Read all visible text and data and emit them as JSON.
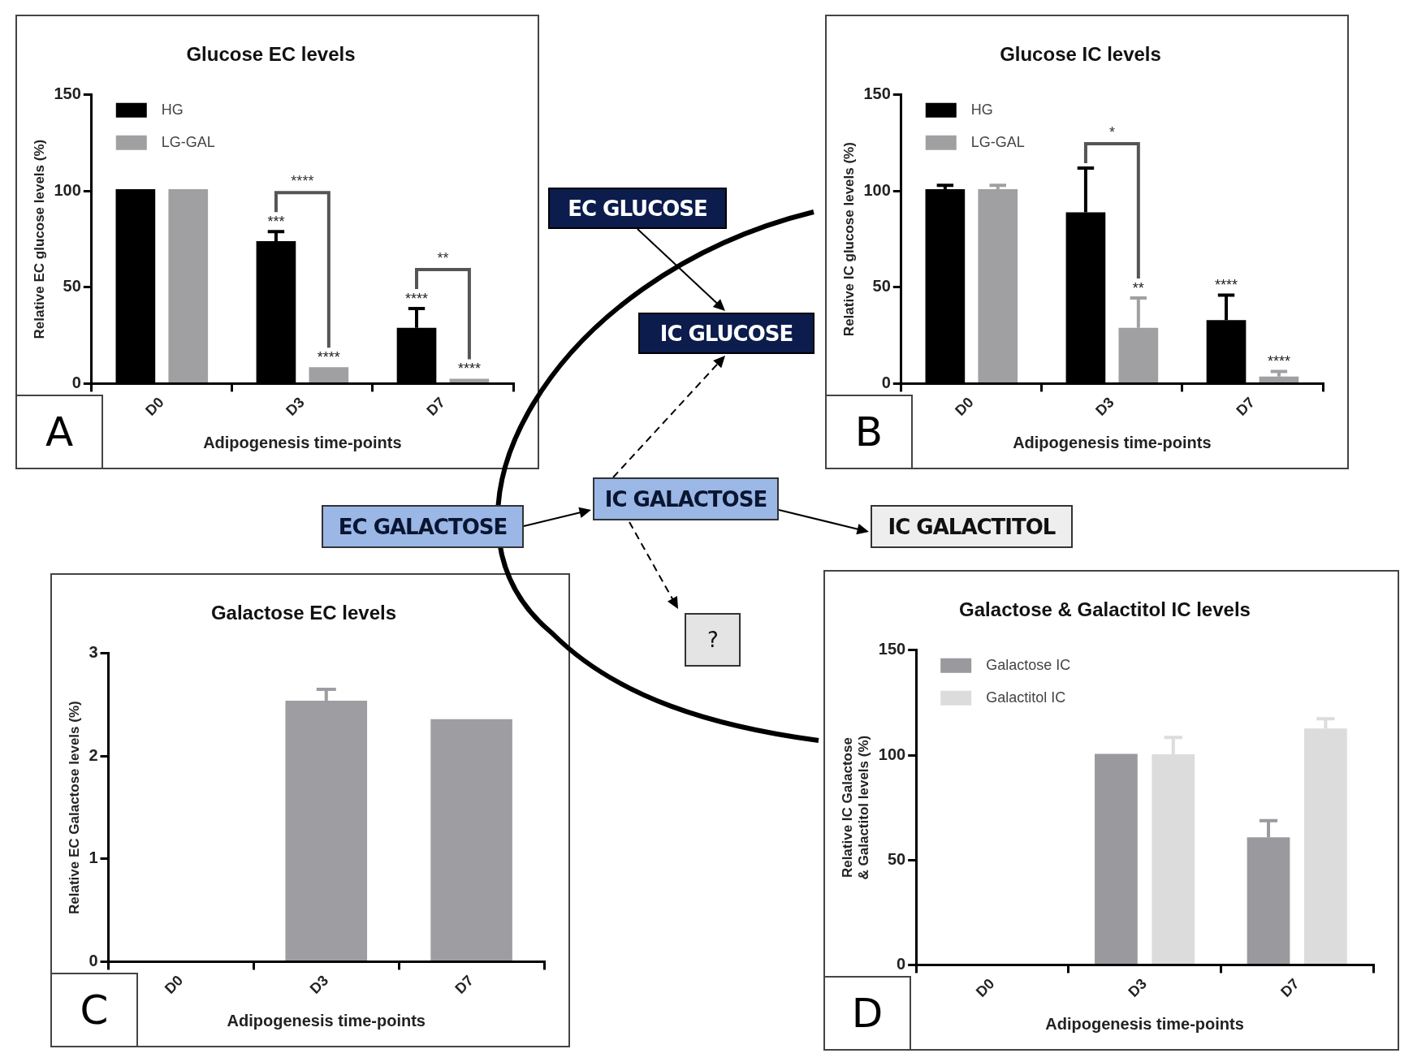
{
  "chart_data": [
    {
      "type": "bar",
      "title": "Glucose EC levels",
      "xlabel": "Adipogenesis time-points",
      "ylabel": "Relative EC glucose levels (%)",
      "categories": [
        "D0",
        "D3",
        "D7"
      ],
      "ylim": [
        0,
        150
      ],
      "yticks": [
        0,
        50,
        100,
        150
      ],
      "legend": "top left",
      "series": [
        {
          "name": "HG",
          "color": "#000000",
          "values": [
            101,
            74,
            29
          ],
          "errors": [
            null,
            5,
            10
          ],
          "value_labels": [
            null,
            "***",
            "****"
          ]
        },
        {
          "name": "LG-GAL",
          "color": "#a0a0a2",
          "values": [
            101,
            8.5,
            2.5
          ],
          "errors": [
            null,
            null,
            null
          ],
          "value_labels": [
            null,
            "****",
            "****"
          ]
        }
      ],
      "annotations": [
        "A",
        "****",
        "**"
      ]
    },
    {
      "type": "bar",
      "title": "Glucose IC levels",
      "xlabel": "Adipogenesis time-points",
      "ylabel": "Relative IC glucose levels (%)",
      "categories": [
        "D0",
        "D3",
        "D7"
      ],
      "ylim": [
        0,
        150
      ],
      "yticks": [
        0,
        50,
        100,
        150
      ],
      "legend": "top left",
      "series": [
        {
          "name": "HG",
          "color": "#000000",
          "values": [
            101,
            89,
            33
          ],
          "errors": [
            2,
            23,
            13
          ],
          "value_labels": [
            null,
            null,
            "****"
          ]
        },
        {
          "name": "LG-GAL",
          "color": "#a0a0a2",
          "values": [
            101,
            29,
            3.7
          ],
          "errors": [
            2,
            15.5,
            2.6
          ],
          "value_labels": [
            null,
            "**",
            "****"
          ]
        }
      ],
      "annotations": [
        "B",
        "*"
      ]
    },
    {
      "type": "bar",
      "title": "Galactose EC levels",
      "xlabel": "Adipogenesis time-points",
      "ylabel": "Relative EC Galactose levels (%)",
      "categories": [
        "D0",
        "D3",
        "D7"
      ],
      "ylim": [
        0,
        3
      ],
      "yticks": [
        0,
        1,
        2,
        3
      ],
      "color": "#9e9ea2",
      "values": [
        null,
        2.54,
        2.36
      ],
      "errors": [
        null,
        0.11,
        null
      ],
      "annotations": [
        "C"
      ]
    },
    {
      "type": "bar",
      "title": "Galactose & Galactitol IC levels",
      "xlabel": "Adipogenesis time-points",
      "ylabel": "Relative IC Galactose & Galactitol levels (%)",
      "categories": [
        "D0",
        "D3",
        "D7"
      ],
      "ylim": [
        0,
        150
      ],
      "yticks": [
        0,
        50,
        100,
        150
      ],
      "legend": "top left",
      "series": [
        {
          "name": "Galactose IC",
          "color": "#9a9a9e",
          "values": [
            null,
            100.6,
            60.8
          ],
          "errors": [
            null,
            null,
            8
          ]
        },
        {
          "name": "Galactitol IC",
          "color": "#dcdcdc",
          "values": [
            null,
            100.4,
            112.7
          ],
          "errors": [
            null,
            8,
            4.6
          ]
        }
      ],
      "annotations": [
        "D"
      ]
    },
    {
      "type": "other",
      "annotations": [
        "EC GLUCOSE",
        "IC GLUCOSE",
        "EC GALACTOSE",
        "IC GALACTOSE",
        "IC GALACTITOL",
        "?"
      ]
    }
  ]
}
